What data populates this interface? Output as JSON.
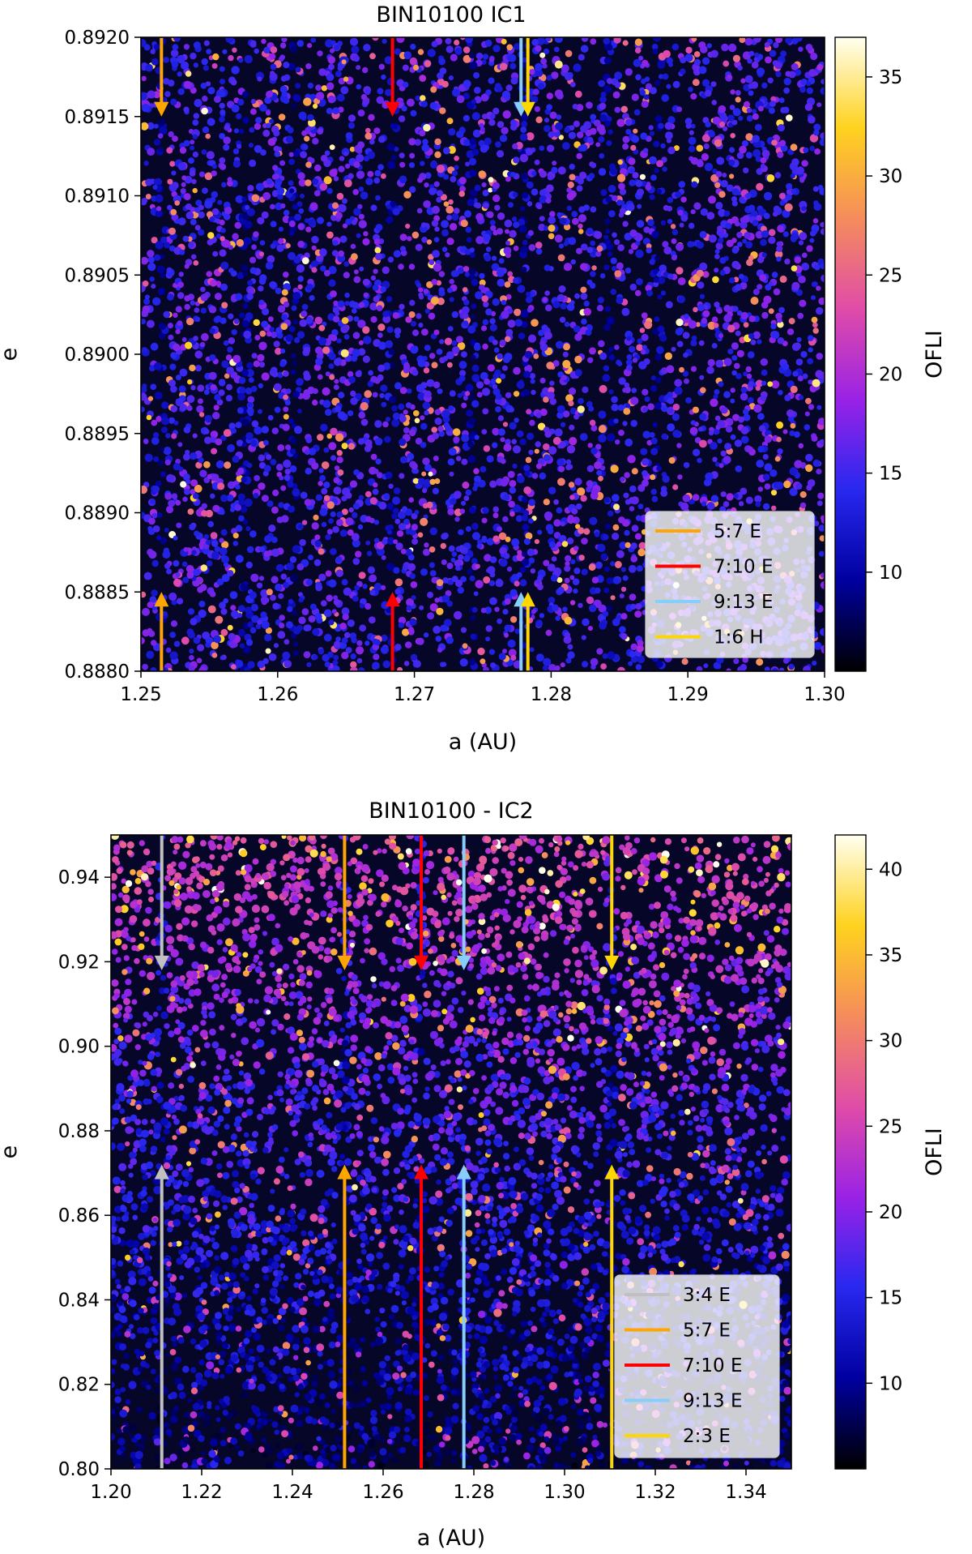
{
  "colorscale": [
    "#000000",
    "#0000a0",
    "#2828f0",
    "#9a22e6",
    "#e04ca8",
    "#f58c5c",
    "#ffd21e",
    "#fffff0"
  ],
  "chart_data": [
    {
      "type": "heatmap",
      "title": "BIN10100 IC1",
      "xlabel": "a (AU)",
      "ylabel": "e",
      "colorbar_label": "OFLI",
      "xlim": [
        1.25,
        1.3
      ],
      "ylim": [
        0.888,
        0.892
      ],
      "xticks": [
        "1.25",
        "1.26",
        "1.27",
        "1.28",
        "1.29",
        "1.30"
      ],
      "yticks": [
        "0.8880",
        "0.8885",
        "0.8890",
        "0.8895",
        "0.8900",
        "0.8905",
        "0.8910",
        "0.8915",
        "0.8920"
      ],
      "colorbar_range": [
        5,
        37
      ],
      "colorbar_ticks": [
        "10",
        "15",
        "20",
        "25",
        "30",
        "35"
      ],
      "legend_position": "lower right",
      "resonances": [
        {
          "name": "5:7 E",
          "a": 1.2515,
          "color": "#ffa500"
        },
        {
          "name": "7:10 E",
          "a": 1.2684,
          "color": "#ff0000"
        },
        {
          "name": "9:13 E",
          "a": 1.2778,
          "color": "#87cefa"
        },
        {
          "name": "1:6 H",
          "a": 1.2783,
          "color": "#ffd700"
        }
      ],
      "arrow_tips_e": [
        0.8915,
        0.8885
      ],
      "dark_bands_a": [
        1.2515,
        1.2576,
        1.2612,
        1.2684,
        1.2742,
        1.278,
        1.2842,
        1.2878
      ]
    },
    {
      "type": "heatmap",
      "title": "BIN10100 - IC2",
      "xlabel": "a (AU)",
      "ylabel": "e",
      "colorbar_label": "OFLI",
      "xlim": [
        1.2,
        1.35
      ],
      "ylim": [
        0.8,
        0.95
      ],
      "xticks": [
        "1.20",
        "1.22",
        "1.24",
        "1.26",
        "1.28",
        "1.30",
        "1.32",
        "1.34"
      ],
      "yticks": [
        "0.80",
        "0.82",
        "0.84",
        "0.86",
        "0.88",
        "0.90",
        "0.92",
        "0.94"
      ],
      "colorbar_range": [
        5,
        42
      ],
      "colorbar_ticks": [
        "10",
        "15",
        "20",
        "25",
        "30",
        "35",
        "40"
      ],
      "legend_position": "lower right",
      "resonances": [
        {
          "name": "3:4 E",
          "a": 1.2112,
          "color": "#c0c0c0"
        },
        {
          "name": "5:7 E",
          "a": 1.2515,
          "color": "#ffa500"
        },
        {
          "name": "7:10 E",
          "a": 1.2684,
          "color": "#ff0000"
        },
        {
          "name": "9:13 E",
          "a": 1.2778,
          "color": "#87cefa"
        },
        {
          "name": "2:3 E",
          "a": 1.3104,
          "color": "#ffd700"
        }
      ],
      "arrow_tips_e": [
        0.918,
        0.872
      ],
      "dark_bands_a": [
        1.2112,
        1.2515,
        1.2684,
        1.3104
      ]
    }
  ]
}
